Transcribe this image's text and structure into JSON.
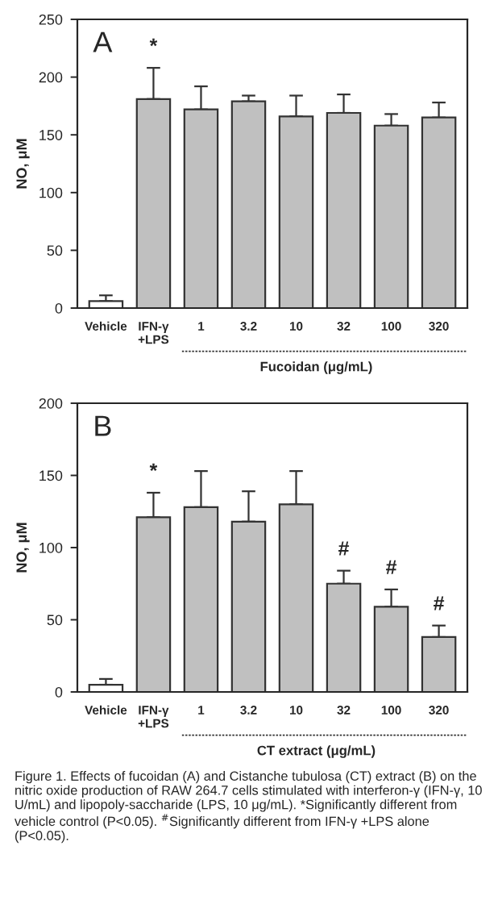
{
  "chart_data": [
    {
      "type": "bar",
      "categories": [
        "Vehicle",
        "IFN-γ\n+LPS",
        "1",
        "3.2",
        "10",
        "32",
        "100",
        "320"
      ],
      "values": [
        6,
        181,
        172,
        179,
        166,
        169,
        158,
        165
      ],
      "colors": [
        "#ffffff",
        "#c0c0c0",
        "#c0c0c0",
        "#c0c0c0",
        "#c0c0c0",
        "#c0c0c0",
        "#c0c0c0",
        "#c0c0c0"
      ],
      "errors": [
        [
          6,
          11
        ],
        [
          181,
          208
        ],
        [
          172,
          192
        ],
        [
          179,
          184
        ],
        [
          166,
          184
        ],
        [
          169,
          185
        ],
        [
          158,
          168
        ],
        [
          165,
          178
        ]
      ],
      "ylabel": "NO, μM",
      "xlabel": "Fucoidan (μg/mL)",
      "ylim": [
        0,
        250
      ],
      "yticks": [
        0,
        50,
        100,
        150,
        200,
        250
      ],
      "value_labels": [
        null,
        "*",
        null,
        null,
        null,
        null,
        null,
        null
      ],
      "annotations": [
        "A"
      ]
    },
    {
      "type": "bar",
      "categories": [
        "Vehicle",
        "IFN-γ\n+LPS",
        "1",
        "3.2",
        "10",
        "32",
        "100",
        "320"
      ],
      "values": [
        5,
        121,
        128,
        118,
        130,
        75,
        59,
        38
      ],
      "colors": [
        "#ffffff",
        "#c0c0c0",
        "#c0c0c0",
        "#c0c0c0",
        "#c0c0c0",
        "#c0c0c0",
        "#c0c0c0",
        "#c0c0c0"
      ],
      "errors": [
        [
          5,
          9
        ],
        [
          121,
          138
        ],
        [
          128,
          153
        ],
        [
          118,
          139
        ],
        [
          130,
          153
        ],
        [
          75,
          84
        ],
        [
          59,
          71
        ],
        [
          38,
          46
        ]
      ],
      "ylabel": "NO, μM",
      "xlabel": "CT extract (μg/mL)",
      "ylim": [
        0,
        200
      ],
      "yticks": [
        0,
        50,
        100,
        150,
        200
      ],
      "value_labels": [
        null,
        "*",
        null,
        null,
        null,
        "#",
        "#",
        "#"
      ],
      "annotations": [
        "B",
        "Figure 1. Effects of fucoidan (A) and Cistanche tubulosa (CT) extract (B) on the nitric oxide production of RAW 264.7 cells stimulated with interferon-γ (IFN-γ, 10 U/mL) and lipopoly-saccharide (LPS, 10 μg/mL). *Significantly different from vehicle control (P<0.05). $^{#}$Significantly different from IFN-γ +LPS alone (P<0.05)."
      ]
    }
  ]
}
